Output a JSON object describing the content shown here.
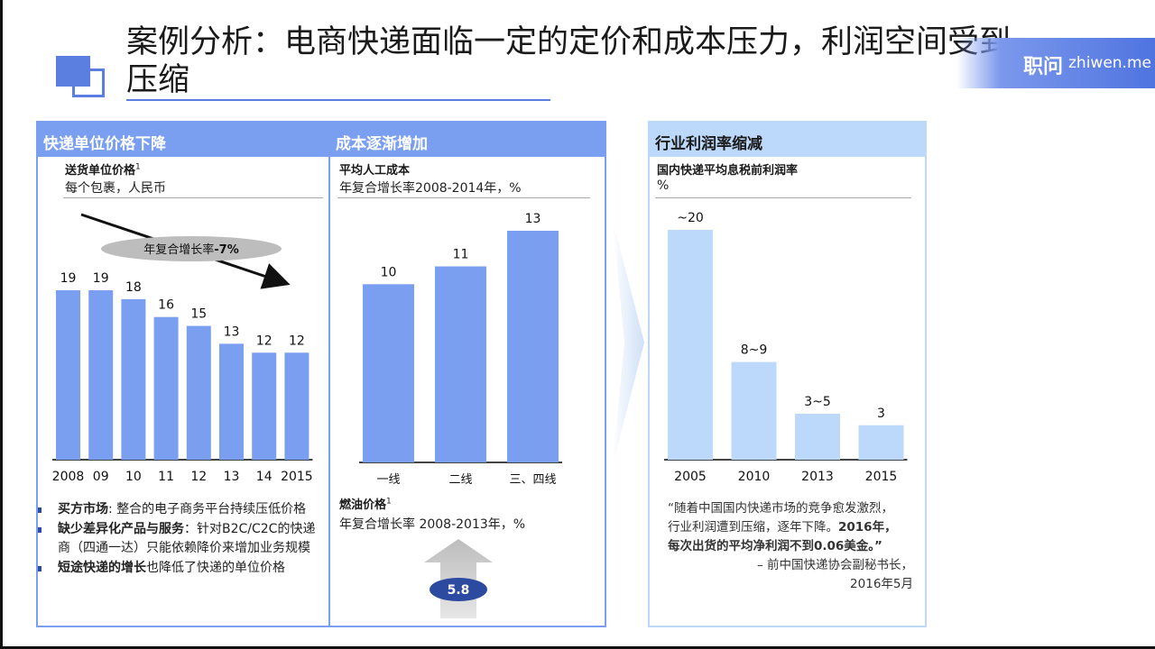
{
  "title": "案例分析：电商快递面临一定的定价和成本压力，利润空间受到压缩",
  "logo": {
    "cn": "职问",
    "en": "zhiwen.me"
  },
  "panel1": {
    "header": "快递单位价格下降",
    "sub_title": "送货单位价格",
    "sub_title_sup": "1",
    "sub_unit": "每个包裹，人民币",
    "trend_label_cn": "年复合增长率",
    "trend_label_value": "-7%",
    "bullets": [
      {
        "bold": "买方市场",
        "text": ": 整合的电子商务平台持续压低价格"
      },
      {
        "bold": "缺少差异化产品与服务",
        "text": "：针对B2C/C2C的快递商（四通一达）只能依赖降价来增加业务规模"
      },
      {
        "bold": "短途快递的增长",
        "text": "也降低了快递的单位价格"
      }
    ]
  },
  "panel2": {
    "header": "成本逐渐增加",
    "sub_title": "平均人工成本",
    "sub_unit": "年复合增长率2008-2014年，%",
    "fuel_title": "燃油价格",
    "fuel_title_sup": "1",
    "fuel_unit": "年复合增长率 2008-2013年，%",
    "fuel_value": "5.8"
  },
  "panel3": {
    "header": "行业利润率缩减",
    "sub_title": "国内快递平均息税前利润率",
    "sub_unit": "%",
    "quote_lines": [
      "“随着中国国内快递市场的竞争愈发激烈，",
      "行业利润遭到压缩，逐年下降。",
      "2016年，",
      "每次出货的平均净利润不到0.06美金。”"
    ],
    "quote_source_1": "– 前中国快递协会副秘书长，",
    "quote_source_2": "2016年5月"
  },
  "chart_data": [
    {
      "type": "bar",
      "title": "送货单位价格",
      "categories": [
        "2008",
        "09",
        "10",
        "11",
        "12",
        "13",
        "14",
        "2015"
      ],
      "values": [
        19,
        19,
        18,
        16,
        15,
        13,
        12,
        12
      ],
      "labels": [
        "19",
        "19",
        "18",
        "16",
        "15",
        "13",
        "12",
        "12"
      ],
      "ylim": [
        0,
        19
      ],
      "color": "#7b9ff0",
      "annotation": "年复合增长率-7%"
    },
    {
      "type": "bar",
      "title": "平均人工成本",
      "categories": [
        "一线",
        "二线",
        "三、四线"
      ],
      "values": [
        10,
        11,
        13
      ],
      "labels": [
        "10",
        "11",
        "13"
      ],
      "ylim": [
        0,
        13
      ],
      "color": "#7b9ff0"
    },
    {
      "type": "bar",
      "title": "国内快递平均息税前利润率",
      "categories": [
        "2005",
        "2010",
        "2013",
        "2015"
      ],
      "values": [
        20,
        8.5,
        4,
        3
      ],
      "labels": [
        "~20",
        "8~9",
        "3~5",
        "3"
      ],
      "ylim": [
        0,
        20
      ],
      "color": "#bcd8fa"
    }
  ]
}
